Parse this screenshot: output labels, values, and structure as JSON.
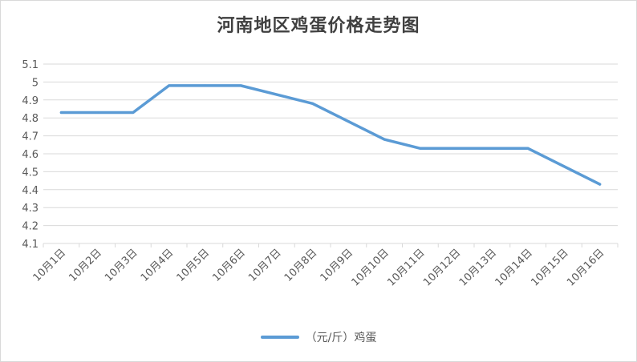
{
  "chart_data": {
    "type": "line",
    "title": "河南地区鸡蛋价格走势图",
    "categories": [
      "10月1日",
      "10月2日",
      "10月3日",
      "10月4日",
      "10月5日",
      "10月6日",
      "10月7日",
      "10月8日",
      "10月9日",
      "10月10日",
      "10月11日",
      "10月12日",
      "10月13日",
      "10月14日",
      "10月15日",
      "10月16日"
    ],
    "series": [
      {
        "name": "（元/斤）鸡蛋",
        "values": [
          4.83,
          4.83,
          4.83,
          4.98,
          4.98,
          4.98,
          4.93,
          4.88,
          4.78,
          4.68,
          4.63,
          4.63,
          4.63,
          4.63,
          4.53,
          4.43
        ]
      }
    ],
    "y_ticks": [
      "4.1",
      "4.2",
      "4.3",
      "4.4",
      "4.5",
      "4.6",
      "4.7",
      "4.8",
      "4.9",
      "5",
      "5.1"
    ],
    "ylim": [
      4.1,
      5.1
    ],
    "grid": true,
    "legend": "bottom",
    "line_color": "#5b9bd5",
    "grid_color": "#d9d9d9"
  }
}
